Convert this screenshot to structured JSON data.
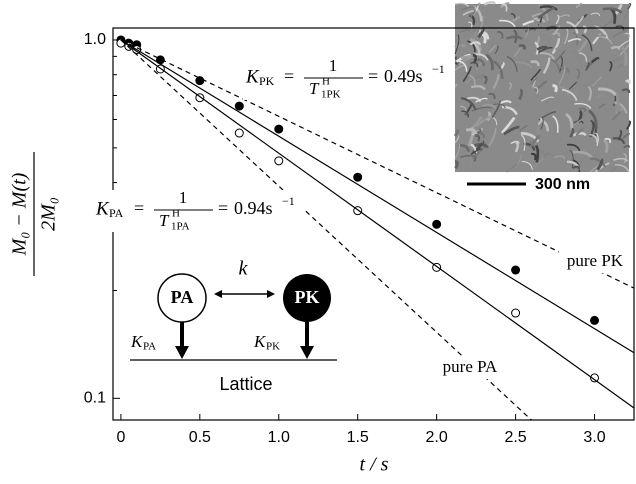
{
  "chart_data": {
    "type": "line",
    "ylabel": {
      "num": "M₀ − M(t)",
      "den": "2M₀"
    },
    "xlabel": "t / s",
    "xlim": [
      -0.05,
      3.25
    ],
    "ylim": [
      0.087,
      1.08
    ],
    "log_y": true,
    "xticks": [
      0,
      0.5,
      {
        "value": 1,
        "label": "1.0"
      },
      1.5,
      {
        "value": 2,
        "label": "2.0"
      },
      2.5,
      {
        "value": 3,
        "label": "3.0"
      }
    ],
    "yticks": [
      {
        "value": 1,
        "label": "1.0"
      },
      0.1
    ],
    "minor_yticks": [
      0.2,
      0.3,
      0.4,
      0.5,
      0.6,
      0.7,
      0.8,
      0.9
    ],
    "series": [
      {
        "style": "filled",
        "color": "#000000",
        "x": [
          0,
          0.05,
          0.1,
          0.25,
          0.5,
          0.75,
          1.0,
          1.5,
          2.0,
          2.5,
          3.0
        ],
        "values": [
          1.0,
          0.98,
          0.97,
          0.88,
          0.77,
          0.654,
          0.564,
          0.414,
          0.306,
          0.228,
          0.165
        ]
      },
      {
        "style": "open",
        "color": "#000000",
        "x": [
          0,
          0.05,
          0.1,
          0.25,
          0.5,
          0.75,
          1.0,
          1.5,
          2.0,
          2.5,
          3.0
        ],
        "values": [
          0.98,
          0.96,
          0.94,
          0.83,
          0.69,
          0.55,
          0.46,
          0.334,
          0.232,
          0.173,
          0.114
        ]
      },
      {
        "style": "solid",
        "color": "#000000",
        "x": [
          0,
          3.25
        ],
        "values": [
          1.0,
          0.134
        ]
      },
      {
        "style": "solid",
        "color": "#000000",
        "x": [
          0,
          3.25
        ],
        "values": [
          1.0,
          0.094
        ]
      },
      {
        "style": "dashed",
        "name": "pure PK",
        "color": "#000000",
        "x": [
          0,
          3.25
        ],
        "values": [
          1.0,
          0.203
        ]
      },
      {
        "style": "dashed",
        "name": "pure PA",
        "color": "#000000",
        "x": [
          0,
          2.6
        ],
        "values": [
          1.0,
          0.087
        ]
      }
    ],
    "rate_pk": {
      "symbol": "K",
      "sub": "PK",
      "eq": "=",
      "num": "1",
      "den": "T",
      "den_sup": "H",
      "den_sub": "1PK",
      "value": "0.49s",
      "exp": "−1"
    },
    "rate_pa": {
      "symbol": "K",
      "sub": "PA",
      "eq": "=",
      "num": "1",
      "den": "T",
      "den_sup": "H",
      "den_sub": "1PA",
      "value": "0.94s",
      "exp": "−1"
    },
    "inset": {
      "scale_bar": "300 nm"
    },
    "scheme": {
      "left": "PA",
      "right": "PK",
      "exchange": "k",
      "left_rate": {
        "symbol": "K",
        "sub": "PA"
      },
      "right_rate": {
        "symbol": "K",
        "sub": "PK"
      },
      "base": "Lattice"
    }
  }
}
